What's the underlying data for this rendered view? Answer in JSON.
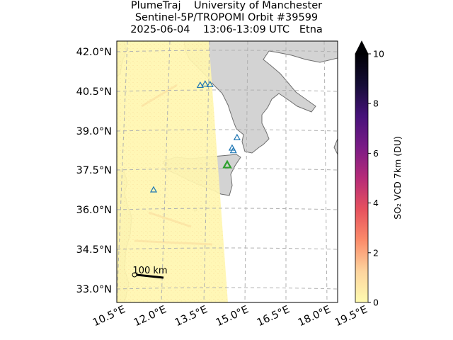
{
  "title": {
    "line1": "PlumeTraj    University of Manchester",
    "line2": "Sentinel-5P/TROPOMI Orbit #39599",
    "line3": "2025-06-04    13:06-13:09 UTC   Etna"
  },
  "map": {
    "lon_range": [
      10.5,
      19.5
    ],
    "lat_range": [
      32.5,
      42.5
    ],
    "lat_ticks": [
      "42.0°N",
      "40.5°N",
      "39.0°N",
      "37.5°N",
      "36.0°N",
      "34.5°N",
      "33.0°N"
    ],
    "lon_ticks": [
      "10.5°E",
      "12.0°E",
      "13.5°E",
      "15.0°E",
      "16.5°E",
      "18.0°E",
      "19.5°E"
    ],
    "gridlines": true,
    "scale_bar_label": "100 km",
    "land_color": "#d3d3d3",
    "swath_color": "#fff6b0",
    "volcanoes": [
      {
        "lon": 13.9,
        "lat": 40.8
      },
      {
        "lon": 14.1,
        "lat": 40.85
      },
      {
        "lon": 14.3,
        "lat": 40.83
      },
      {
        "lon": 15.4,
        "lat": 38.8
      },
      {
        "lon": 15.2,
        "lat": 38.4
      },
      {
        "lon": 15.25,
        "lat": 38.3
      },
      {
        "lon": 12.0,
        "lat": 36.8
      }
    ],
    "target_volcano": {
      "name": "Etna",
      "lon": 15.0,
      "lat": 37.75,
      "color": "#2ca02c"
    },
    "marker_color": "#1f77b4"
  },
  "colorbar": {
    "label": "SO₂ VCD 7km (DU)",
    "min": 0,
    "max": 10,
    "ticks": [
      "0",
      "2",
      "4",
      "6",
      "8",
      "10"
    ],
    "extend": "max",
    "colors": [
      "#fffbb0",
      "#fdd49e",
      "#fb8c6a",
      "#e6515e",
      "#b62b78",
      "#7a1b86",
      "#46127a",
      "#150d36",
      "#000004"
    ]
  }
}
